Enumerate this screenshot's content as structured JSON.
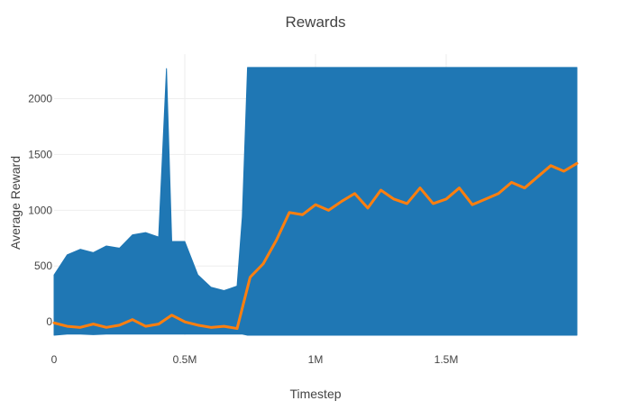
{
  "chart_data": {
    "type": "line",
    "title": "Rewards",
    "xlabel": "Timestep",
    "ylabel": "Average Reward",
    "xlim": [
      0,
      2000000
    ],
    "ylim": [
      -120,
      2400
    ],
    "grid": true,
    "legend": "none",
    "x_ticks": [
      {
        "value": 0,
        "label": "0"
      },
      {
        "value": 500000,
        "label": "0.5M"
      },
      {
        "value": 1000000,
        "label": "1M"
      },
      {
        "value": 1500000,
        "label": "1.5M"
      }
    ],
    "y_ticks": [
      {
        "value": 0,
        "label": "0"
      },
      {
        "value": 500,
        "label": "500"
      },
      {
        "value": 1000,
        "label": "1000"
      },
      {
        "value": 1500,
        "label": "1500"
      },
      {
        "value": 2000,
        "label": "2000"
      }
    ],
    "series": [
      {
        "color": "#1f77b4",
        "x": [
          0,
          50000,
          100000,
          150000,
          200000,
          250000,
          300000,
          350000,
          400000,
          430000,
          450000,
          500000,
          550000,
          600000,
          650000,
          700000,
          720000,
          740000,
          800000,
          900000,
          1000000,
          1100000,
          1200000,
          1300000,
          1400000,
          1500000,
          1600000,
          1700000,
          1800000,
          1900000,
          2000000
        ],
        "y_high": [
          420,
          600,
          650,
          620,
          680,
          660,
          780,
          800,
          760,
          2270,
          720,
          720,
          420,
          310,
          280,
          320,
          940,
          2280,
          2280,
          2280,
          2280,
          2280,
          2280,
          2280,
          2280,
          2280,
          2280,
          2280,
          2280,
          2280,
          2280
        ],
        "y_low": [
          -120,
          -110,
          -110,
          -115,
          -110,
          -110,
          -110,
          -110,
          -110,
          -110,
          -110,
          -110,
          -110,
          -110,
          -110,
          -110,
          -110,
          -120,
          -120,
          -120,
          -120,
          -120,
          -120,
          -120,
          -120,
          -120,
          -120,
          -120,
          -120,
          -120,
          -120
        ]
      },
      {
        "color": "#ff7f0e",
        "x": [
          0,
          50000,
          100000,
          150000,
          200000,
          250000,
          300000,
          350000,
          400000,
          450000,
          500000,
          550000,
          600000,
          650000,
          700000,
          750000,
          800000,
          850000,
          900000,
          950000,
          1000000,
          1050000,
          1100000,
          1150000,
          1200000,
          1250000,
          1300000,
          1350000,
          1400000,
          1450000,
          1500000,
          1550000,
          1600000,
          1650000,
          1700000,
          1750000,
          1800000,
          1850000,
          1900000,
          1950000,
          2000000
        ],
        "y": [
          -10,
          -40,
          -50,
          -20,
          -50,
          -30,
          20,
          -40,
          -20,
          60,
          0,
          -30,
          -50,
          -40,
          -60,
          400,
          520,
          730,
          980,
          960,
          1050,
          1000,
          1080,
          1150,
          1020,
          1180,
          1100,
          1060,
          1200,
          1060,
          1100,
          1200,
          1050,
          1100,
          1150,
          1250,
          1200,
          1300,
          1400,
          1350,
          1420
        ]
      }
    ]
  }
}
